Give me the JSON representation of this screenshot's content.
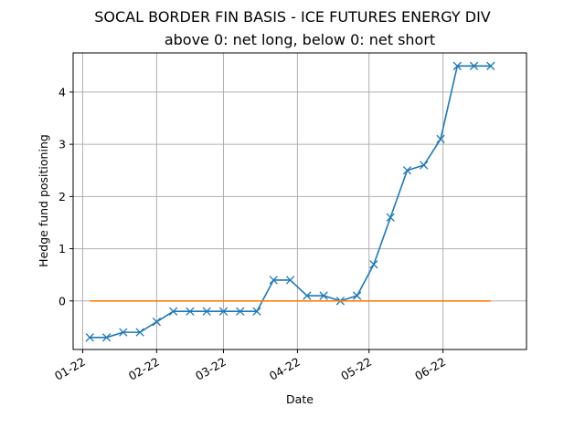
{
  "chart_data": {
    "type": "line",
    "title": "SOCAL BORDER FIN BASIS - ICE FUTURES ENERGY DIV",
    "subtitle": "above 0: net long, below 0: net short",
    "xlabel": "Date",
    "ylabel": "Hedge fund positioning",
    "x_tick_labels": [
      "01-22",
      "02-22",
      "03-22",
      "04-22",
      "05-22",
      "06-22"
    ],
    "x_tick_dates": [
      "2022-01-01",
      "2022-02-01",
      "2022-03-01",
      "2022-04-01",
      "2022-05-01",
      "2022-06-01"
    ],
    "y_ticks": [
      0,
      1,
      2,
      3,
      4
    ],
    "xlim": [
      "2021-12-28",
      "2022-07-06"
    ],
    "ylim": [
      -0.93,
      4.75
    ],
    "grid": true,
    "series": [
      {
        "color": "#1f77b4",
        "marker": "x",
        "points": [
          {
            "x": "2022-01-04",
            "y": -0.7
          },
          {
            "x": "2022-01-11",
            "y": -0.7
          },
          {
            "x": "2022-01-18",
            "y": -0.6
          },
          {
            "x": "2022-01-25",
            "y": -0.6
          },
          {
            "x": "2022-02-01",
            "y": -0.4
          },
          {
            "x": "2022-02-08",
            "y": -0.2
          },
          {
            "x": "2022-02-15",
            "y": -0.2
          },
          {
            "x": "2022-02-22",
            "y": -0.2
          },
          {
            "x": "2022-03-01",
            "y": -0.2
          },
          {
            "x": "2022-03-08",
            "y": -0.2
          },
          {
            "x": "2022-03-15",
            "y": -0.2
          },
          {
            "x": "2022-03-22",
            "y": 0.4
          },
          {
            "x": "2022-03-29",
            "y": 0.4
          },
          {
            "x": "2022-04-05",
            "y": 0.1
          },
          {
            "x": "2022-04-12",
            "y": 0.1
          },
          {
            "x": "2022-04-19",
            "y": 0.0
          },
          {
            "x": "2022-04-26",
            "y": 0.1
          },
          {
            "x": "2022-05-03",
            "y": 0.7
          },
          {
            "x": "2022-05-10",
            "y": 1.6
          },
          {
            "x": "2022-05-17",
            "y": 2.5
          },
          {
            "x": "2022-05-24",
            "y": 2.6
          },
          {
            "x": "2022-05-31",
            "y": 3.1
          },
          {
            "x": "2022-06-07",
            "y": 4.5
          },
          {
            "x": "2022-06-14",
            "y": 4.5
          },
          {
            "x": "2022-06-21",
            "y": 4.5
          }
        ]
      },
      {
        "color": "#ff7f0e",
        "marker": "none",
        "points": [
          {
            "x": "2022-01-04",
            "y": 0
          },
          {
            "x": "2022-06-21",
            "y": 0
          }
        ]
      }
    ]
  }
}
